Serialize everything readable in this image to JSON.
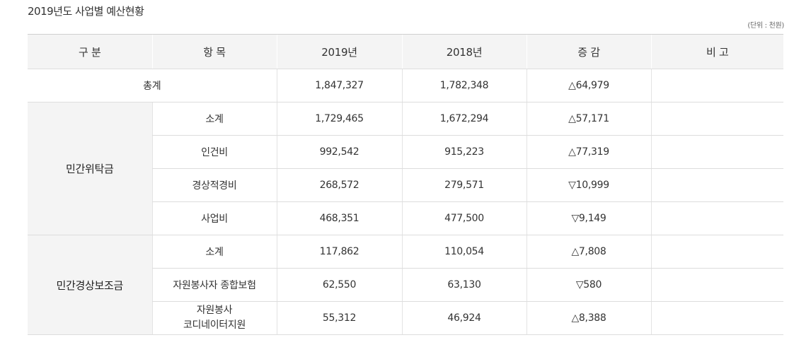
{
  "title": "2019년도 사업별 예산현황",
  "unit": "(단위 : 천원)",
  "headers": {
    "category": "구 분",
    "item": "항 목",
    "y2019": "2019년",
    "y2018": "2018년",
    "change": "증 감",
    "note": "비 고"
  },
  "total": {
    "label": "총계",
    "y2019": "1,847,327",
    "y2018": "1,782,348",
    "change": "△64,979",
    "note": ""
  },
  "group1": {
    "label": "민간위탁금",
    "rows": [
      {
        "item": "소계",
        "y2019": "1,729,465",
        "y2018": "1,672,294",
        "change": "△57,171",
        "note": ""
      },
      {
        "item": "인건비",
        "y2019": "992,542",
        "y2018": "915,223",
        "change": "△77,319",
        "note": ""
      },
      {
        "item": "경상적경비",
        "y2019": "268,572",
        "y2018": "279,571",
        "change": "▽10,999",
        "note": ""
      },
      {
        "item": "사업비",
        "y2019": "468,351",
        "y2018": "477,500",
        "change": "▽9,149",
        "note": ""
      }
    ]
  },
  "group2": {
    "label": "민간경상보조금",
    "rows": [
      {
        "item": "소계",
        "y2019": "117,862",
        "y2018": "110,054",
        "change": "△7,808",
        "note": ""
      },
      {
        "item": "자원봉사자 종합보험",
        "y2019": "62,550",
        "y2018": "63,130",
        "change": "▽580",
        "note": ""
      },
      {
        "item_line1": "자원봉사",
        "item_line2": "코디네이터지원",
        "y2019": "55,312",
        "y2018": "46,924",
        "change": "△8,388",
        "note": ""
      }
    ]
  }
}
